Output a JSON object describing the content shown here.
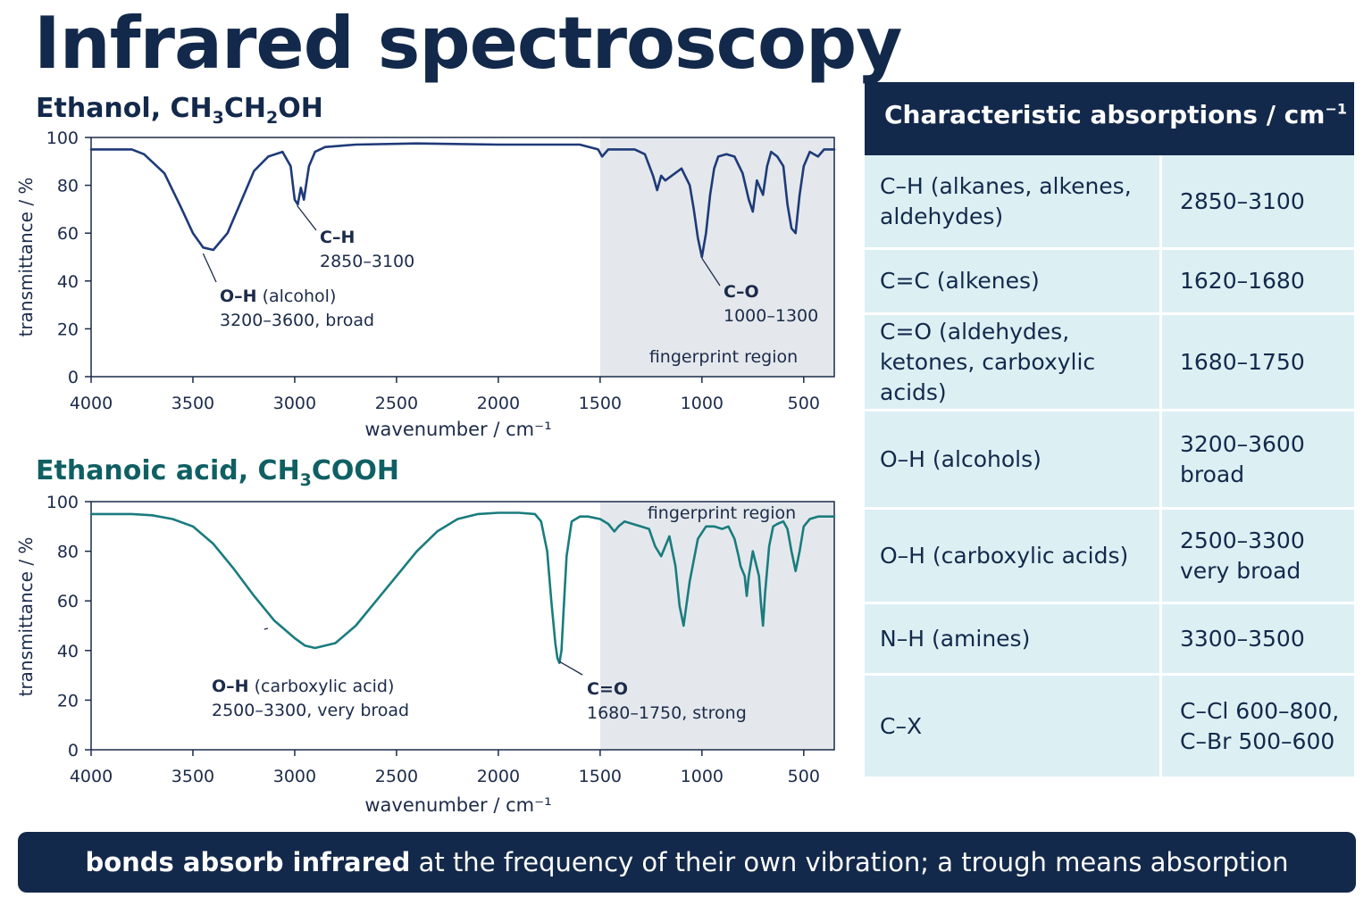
{
  "title": "Infrared spectroscopy",
  "spectra": [
    {
      "name": "Ethanol",
      "formula_parts": [
        "CH",
        "3",
        "CH",
        "2",
        "OH"
      ],
      "xlabel": "wavenumber / cm⁻¹",
      "ylabel": "transmittance / %",
      "region_label": "fingerprint region",
      "annotations": [
        {
          "bond": "O–H",
          "detail": " (alcohol)",
          "range": "3200–3600, broad"
        },
        {
          "bond": "C–H",
          "detail": "",
          "range": "2850–3100"
        },
        {
          "bond": "C–O",
          "detail": "",
          "range": "1000–1300"
        }
      ]
    },
    {
      "name": "Ethanoic acid",
      "formula_parts": [
        "CH",
        "3",
        "COOH"
      ],
      "xlabel": "wavenumber / cm⁻¹",
      "ylabel": "transmittance / %",
      "region_label": "fingerprint region",
      "annotations": [
        {
          "bond": "O–H",
          "detail": " (carboxylic acid)",
          "range": "2500–3300, very broad"
        },
        {
          "bond": "C=O",
          "detail": "",
          "range": "1680–1750, strong"
        }
      ]
    }
  ],
  "table": {
    "header": "Characteristic absorptions / cm",
    "header_sup": "−1",
    "rows": [
      {
        "bond": "C–H (alkanes, alkenes, aldehydes)",
        "range": "2850–3100"
      },
      {
        "bond": "C=C (alkenes)",
        "range": "1620–1680"
      },
      {
        "bond": "C=O (aldehydes, ketones, carboxylic acids)",
        "range": "1680–1750"
      },
      {
        "bond": "O–H (alcohols)",
        "range": "3200–3600\nbroad"
      },
      {
        "bond": "O–H (carboxylic acids)",
        "range": "2500–3300\nvery broad"
      },
      {
        "bond": "N–H (amines)",
        "range": "3300–3500"
      },
      {
        "bond": "C–X",
        "range": "C–Cl 600–800,\nC–Br 500–600"
      }
    ]
  },
  "footer": {
    "bold": "bonds absorb infrared",
    "rest": " at the frequency of their own vibration; a trough means absorption"
  },
  "colors": {
    "navy": "#13294b",
    "ethanol_line": "#1e3a78",
    "acid_line": "#1a7c7e",
    "fingerprint_fill": "#e4e8ec",
    "table_cell": "#dcf0f4"
  },
  "chart_data": [
    {
      "type": "line",
      "title": "Ethanol, CH3CH2OH",
      "xlabel": "wavenumber / cm⁻¹",
      "ylabel": "transmittance / %",
      "xlim": [
        4000,
        350
      ],
      "ylim": [
        0,
        100
      ],
      "x_reversed": true,
      "x_ticks": [
        4000,
        3500,
        3000,
        2500,
        2000,
        1500,
        1000,
        500
      ],
      "y_ticks": [
        0,
        20,
        40,
        60,
        80,
        100
      ],
      "grid": false,
      "shaded_region": {
        "label": "fingerprint region",
        "x_from": 1500,
        "x_to": 350
      },
      "series": [
        {
          "x": [
            4000,
            3800,
            3740,
            3640,
            3560,
            3500,
            3450,
            3400,
            3330,
            3260,
            3200,
            3130,
            3060,
            3020,
            3000,
            2985,
            2970,
            2955,
            2930,
            2900,
            2850,
            2700,
            2400,
            2000,
            1750,
            1600,
            1510,
            1490,
            1460,
            1400,
            1330,
            1280,
            1240,
            1220,
            1200,
            1180,
            1100,
            1060,
            1040,
            1020,
            1000,
            980,
            960,
            940,
            920,
            880,
            840,
            800,
            770,
            750,
            730,
            700,
            680,
            660,
            630,
            600,
            580,
            560,
            540,
            520,
            500,
            470,
            430,
            400,
            350
          ],
          "y": [
            95,
            95,
            93,
            85,
            71,
            60,
            54,
            53,
            60,
            74,
            86,
            92,
            94,
            88,
            74,
            72,
            79,
            74,
            88,
            94,
            96,
            97,
            97.5,
            97,
            97,
            97,
            95,
            92,
            95,
            95,
            95,
            93,
            84,
            78,
            84,
            82,
            87,
            80,
            70,
            58,
            50,
            60,
            76,
            87,
            92,
            93,
            92,
            85,
            74,
            69,
            82,
            76,
            88,
            94,
            92,
            88,
            72,
            62,
            60,
            76,
            88,
            94,
            92,
            95,
            95
          ]
        }
      ]
    },
    {
      "type": "line",
      "title": "Ethanoic acid, CH3COOH",
      "xlabel": "wavenumber / cm⁻¹",
      "ylabel": "transmittance / %",
      "xlim": [
        4000,
        350
      ],
      "ylim": [
        0,
        100
      ],
      "x_reversed": true,
      "x_ticks": [
        4000,
        3500,
        3000,
        2500,
        2000,
        1500,
        1000,
        500
      ],
      "y_ticks": [
        0,
        20,
        40,
        60,
        80,
        100
      ],
      "grid": false,
      "shaded_region": {
        "label": "fingerprint region",
        "x_from": 1500,
        "x_to": 350
      },
      "series": [
        {
          "x": [
            4000,
            3800,
            3700,
            3600,
            3500,
            3400,
            3300,
            3200,
            3100,
            3000,
            2950,
            2900,
            2800,
            2700,
            2600,
            2500,
            2400,
            2300,
            2200,
            2100,
            2000,
            1900,
            1820,
            1790,
            1760,
            1740,
            1720,
            1710,
            1700,
            1690,
            1680,
            1665,
            1640,
            1600,
            1560,
            1500,
            1460,
            1430,
            1410,
            1380,
            1340,
            1300,
            1260,
            1230,
            1200,
            1180,
            1160,
            1130,
            1110,
            1090,
            1060,
            1020,
            980,
            940,
            900,
            870,
            840,
            820,
            810,
            790,
            780,
            770,
            750,
            720,
            710,
            700,
            690,
            670,
            650,
            630,
            600,
            580,
            560,
            540,
            520,
            500,
            470,
            430,
            400,
            350
          ],
          "y": [
            95,
            95,
            94.5,
            93,
            90,
            83,
            73,
            62,
            52,
            45,
            42,
            41,
            43,
            50,
            60,
            70,
            80,
            88,
            93,
            95,
            95.5,
            95.5,
            95,
            92,
            80,
            60,
            43,
            37,
            35,
            40,
            55,
            78,
            92,
            94,
            94,
            93,
            91,
            88,
            90,
            92,
            91,
            90,
            89,
            82,
            78,
            82,
            86,
            74,
            58,
            50,
            68,
            85,
            90,
            90,
            89,
            90,
            85,
            78,
            74,
            70,
            62,
            70,
            80,
            70,
            59,
            50,
            63,
            82,
            90,
            91,
            92,
            89,
            80,
            72,
            80,
            90,
            93,
            94,
            94,
            94
          ]
        }
      ]
    }
  ]
}
